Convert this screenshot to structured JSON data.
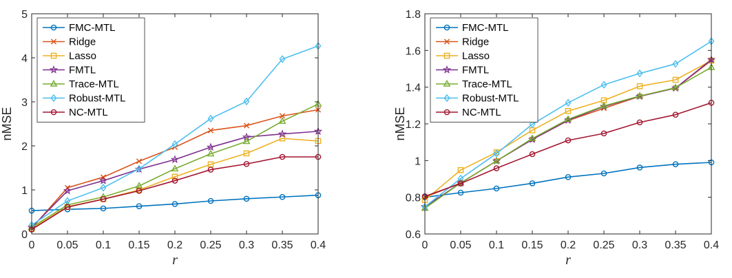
{
  "chart_data": [
    {
      "type": "line",
      "xlabel": "r",
      "ylabel": "nMSE",
      "xlim": [
        0,
        0.4
      ],
      "ylim": [
        0,
        5
      ],
      "xticks": [
        "0",
        "0.05",
        "0.1",
        "0.15",
        "0.2",
        "0.25",
        "0.3",
        "0.35",
        "0.4"
      ],
      "yticks": [
        "0",
        "1",
        "2",
        "3",
        "4",
        "5"
      ],
      "x": [
        0,
        0.05,
        0.1,
        0.15,
        0.2,
        0.25,
        0.3,
        0.35,
        0.4
      ],
      "grid": false,
      "legend_position": "top-left",
      "series": [
        {
          "name": "FMC-MTL",
          "color": "#0072BD",
          "marker": "circle",
          "values": [
            0.53,
            0.56,
            0.58,
            0.63,
            0.68,
            0.75,
            0.8,
            0.84,
            0.88
          ]
        },
        {
          "name": "Ridge",
          "color": "#D95319",
          "marker": "x",
          "values": [
            0.13,
            1.05,
            1.29,
            1.65,
            1.97,
            2.35,
            2.46,
            2.68,
            2.82
          ]
        },
        {
          "name": "Lasso",
          "color": "#EDB120",
          "marker": "square",
          "values": [
            0.12,
            0.62,
            0.79,
            1.0,
            1.3,
            1.58,
            1.83,
            2.17,
            2.11
          ]
        },
        {
          "name": "FMTL",
          "color": "#7E2F8E",
          "marker": "star",
          "values": [
            0.15,
            0.98,
            1.21,
            1.47,
            1.69,
            1.97,
            2.2,
            2.27,
            2.33
          ]
        },
        {
          "name": "Trace-MTL",
          "color": "#77AC30",
          "marker": "triangle",
          "values": [
            0.15,
            0.66,
            0.84,
            1.09,
            1.48,
            1.82,
            2.1,
            2.56,
            2.95
          ]
        },
        {
          "name": "Robust-MTL",
          "color": "#4DBEEE",
          "marker": "diamond",
          "values": [
            0.2,
            0.75,
            1.05,
            1.48,
            2.04,
            2.62,
            3.01,
            3.97,
            4.27
          ]
        },
        {
          "name": "NC-MTL",
          "color": "#A2142F",
          "marker": "circle",
          "values": [
            0.1,
            0.61,
            0.79,
            0.98,
            1.21,
            1.46,
            1.59,
            1.75,
            1.75
          ]
        }
      ]
    },
    {
      "type": "line",
      "xlabel": "r",
      "ylabel": "nMSE",
      "xlim": [
        0,
        0.4
      ],
      "ylim": [
        0.6,
        1.8
      ],
      "xticks": [
        "0",
        "0.05",
        "0.1",
        "0.15",
        "0.2",
        "0.25",
        "0.3",
        "0.35",
        "0.4"
      ],
      "yticks": [
        "0.6",
        "0.8",
        "1",
        "1.2",
        "1.4",
        "1.6",
        "1.8"
      ],
      "x": [
        0,
        0.05,
        0.1,
        0.15,
        0.2,
        0.25,
        0.3,
        0.35,
        0.4
      ],
      "grid": false,
      "legend_position": "top-left",
      "series": [
        {
          "name": "FMC-MTL",
          "color": "#0072BD",
          "marker": "circle",
          "values": [
            0.8,
            0.825,
            0.848,
            0.876,
            0.91,
            0.93,
            0.962,
            0.98,
            0.99
          ]
        },
        {
          "name": "Ridge",
          "color": "#D95319",
          "marker": "x",
          "values": [
            0.8,
            0.878,
            0.998,
            1.115,
            1.218,
            1.285,
            1.35,
            1.395,
            1.545
          ]
        },
        {
          "name": "Lasso",
          "color": "#EDB120",
          "marker": "square",
          "values": [
            0.785,
            0.948,
            1.045,
            1.165,
            1.27,
            1.328,
            1.405,
            1.44,
            1.545
          ]
        },
        {
          "name": "FMTL",
          "color": "#7E2F8E",
          "marker": "star",
          "values": [
            0.748,
            0.878,
            0.998,
            1.115,
            1.22,
            1.295,
            1.35,
            1.395,
            1.55
          ]
        },
        {
          "name": "Trace-MTL",
          "color": "#77AC30",
          "marker": "triangle",
          "values": [
            0.74,
            0.878,
            0.998,
            1.12,
            1.225,
            1.298,
            1.352,
            1.397,
            1.508
          ]
        },
        {
          "name": "Robust-MTL",
          "color": "#4DBEEE",
          "marker": "diamond",
          "values": [
            0.748,
            0.902,
            1.038,
            1.198,
            1.315,
            1.413,
            1.475,
            1.527,
            1.65
          ]
        },
        {
          "name": "NC-MTL",
          "color": "#A2142F",
          "marker": "circle",
          "values": [
            0.805,
            0.875,
            0.958,
            1.035,
            1.11,
            1.148,
            1.208,
            1.25,
            1.315
          ]
        }
      ]
    }
  ]
}
